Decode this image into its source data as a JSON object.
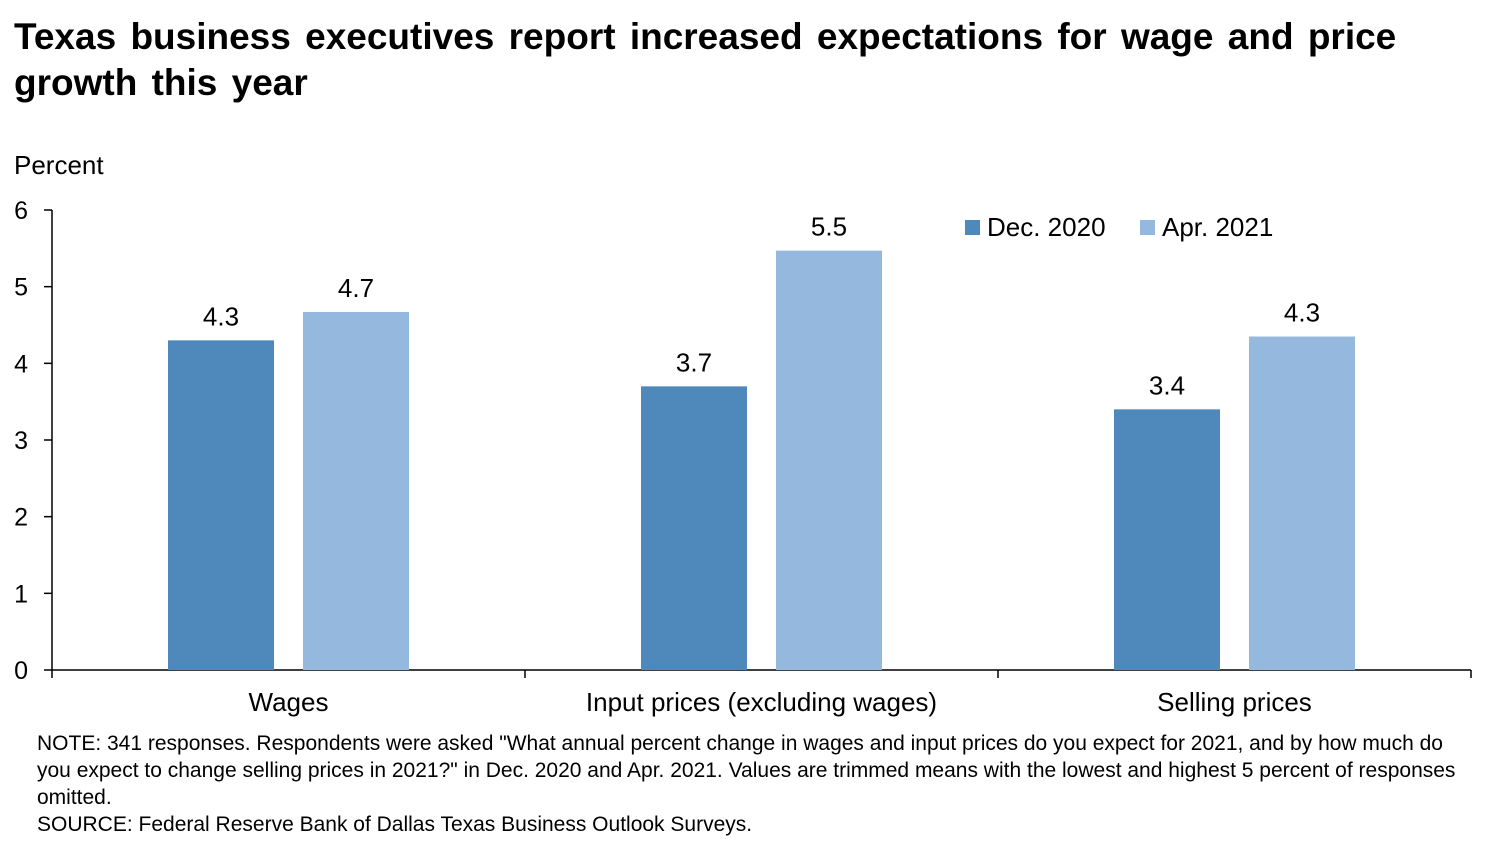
{
  "title": "Texas business executives report increased expectations for wage and price growth this year",
  "ylabel": "Percent",
  "note": "NOTE: 341 responses. Respondents were asked \"What annual percent change in wages and input prices do you expect for 2021, and by how much do you expect to change selling prices in 2021?\" in Dec. 2020 and Apr. 2021. Values are trimmed means with the lowest and highest 5 percent of responses omitted.",
  "source": "SOURCE: Federal Reserve Bank of Dallas Texas Business Outlook Surveys.",
  "colors": {
    "dec2020": "#4f88bb",
    "apr2021": "#95b8de"
  },
  "chart_data": {
    "type": "bar",
    "title": "Texas business executives report increased expectations for wage and price growth this year",
    "xlabel": "",
    "ylabel": "Percent",
    "categories": [
      "Wages",
      "Input prices (excluding wages)",
      "Selling prices"
    ],
    "series": [
      {
        "name": "Dec. 2020",
        "values": [
          4.3,
          3.7,
          3.4
        ],
        "labels": [
          "4.3",
          "3.7",
          "3.4"
        ]
      },
      {
        "name": "Apr. 2021",
        "values": [
          4.67,
          5.47,
          4.35
        ],
        "labels": [
          "4.7",
          "5.5",
          "4.3"
        ]
      }
    ],
    "ylim": [
      0,
      6
    ],
    "yticks": [
      "0",
      "1",
      "2",
      "3",
      "4",
      "5",
      "6"
    ],
    "grid": false,
    "legend": "top-right"
  }
}
